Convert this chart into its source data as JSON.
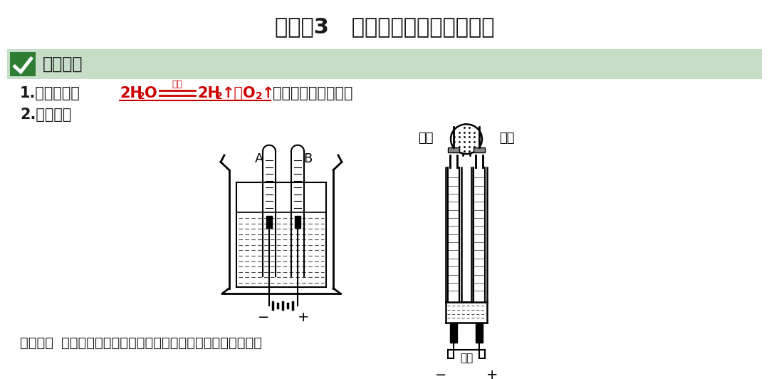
{
  "title": "命题点3   水的组成（电解水实验）",
  "title_fontsize": 22,
  "title_color": "#1a1a1a",
  "bg_color": "#ffffff",
  "header_bg": "#c8ddc8",
  "header_text": "知识梳理",
  "header_fontsize": 17,
  "line1_prefix": "1.反应原理：",
  "line1_suffix": "（写化学方程式）。",
  "line2": "2.实验装置",
  "note_bold": "【注意】",
  "note_text": "水中可加入少量硫酸钠或氢氧化钠以增强水的导电性。",
  "note_fontsize": 14,
  "body_fontsize": 15,
  "text_color": "#1a1a1a",
  "red_color": "#cc0000",
  "green_color": "#2e7d32",
  "check_green": "#2e7d32"
}
